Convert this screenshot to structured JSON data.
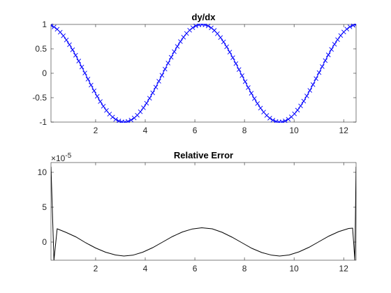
{
  "chart_data": [
    {
      "type": "line",
      "title": "dy/dx",
      "xlabel": "",
      "ylabel": "",
      "xlim": [
        0.2,
        12.5
      ],
      "ylim": [
        -1,
        1
      ],
      "xticks": [
        2,
        4,
        6,
        8,
        10,
        12
      ],
      "yticks": [
        -1,
        -0.5,
        0,
        0.5,
        1
      ],
      "xtick_labels": [
        "2",
        "4",
        "6",
        "8",
        "10",
        "12"
      ],
      "ytick_labels": [
        "-1",
        "-0.5",
        "0",
        "0.5",
        "1"
      ],
      "grid": false,
      "series": [
        {
          "function": "cos(x)",
          "x_range": [
            0.2,
            12.5
          ],
          "style": "solid line",
          "color": "#0000ff"
        },
        {
          "function": "cos(x)",
          "x_range": [
            0.2,
            12.5
          ],
          "num_points": 100,
          "style": "x markers",
          "color": "#0000ff"
        }
      ]
    },
    {
      "type": "line",
      "title": "Relative Error",
      "xlabel": "",
      "ylabel": "",
      "xlim": [
        0.2,
        12.5
      ],
      "ylim": [
        -2.6,
        11.4
      ],
      "y_exponent_label": "×10",
      "y_exponent_power": "-5",
      "xticks": [
        2,
        4,
        6,
        8,
        10,
        12
      ],
      "yticks": [
        0,
        5,
        10
      ],
      "xtick_labels": [
        "2",
        "4",
        "6",
        "8",
        "10",
        "12"
      ],
      "ytick_labels": [
        "0",
        "5",
        "10"
      ],
      "grid": false,
      "series": [
        {
          "x": [
            0.2,
            0.32,
            0.45,
            0.8,
            1.2,
            1.6,
            2.0,
            2.4,
            2.8,
            3.14,
            3.5,
            3.9,
            4.3,
            4.7,
            5.1,
            5.5,
            5.9,
            6.28,
            6.7,
            7.1,
            7.5,
            7.9,
            8.3,
            8.7,
            9.1,
            9.42,
            9.8,
            10.2,
            10.6,
            11.0,
            11.4,
            11.8,
            12.2,
            12.36,
            12.45,
            12.5
          ],
          "y": [
            10.8,
            -2.6,
            1.9,
            1.4,
            0.75,
            -0.1,
            -0.85,
            -1.45,
            -1.85,
            -2.0,
            -1.88,
            -1.45,
            -0.8,
            0.0,
            0.8,
            1.45,
            1.88,
            2.05,
            1.9,
            1.4,
            0.7,
            -0.1,
            -0.9,
            -1.5,
            -1.88,
            -2.0,
            -1.85,
            -1.4,
            -0.75,
            0.05,
            0.85,
            1.5,
            1.95,
            2.0,
            -2.6,
            10.8
          ],
          "style": "solid line",
          "color": "#000000"
        }
      ]
    }
  ]
}
